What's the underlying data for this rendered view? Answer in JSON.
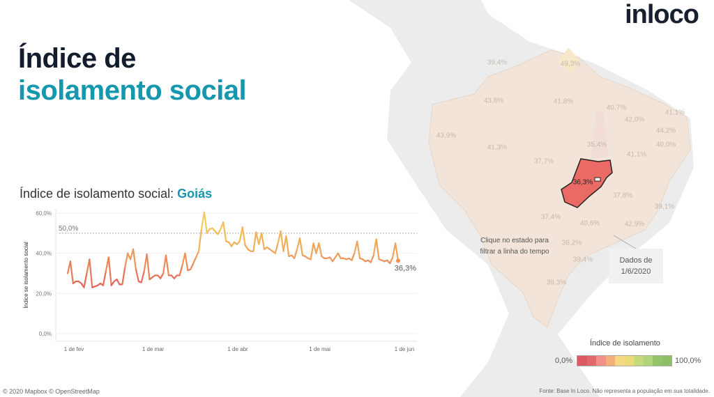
{
  "header": {
    "title_line1": "Índice de",
    "title_line2": "isolamento social",
    "logo": "inloco"
  },
  "chart_title": {
    "prefix": "Índice de isolamento social: ",
    "state": "Goiás"
  },
  "chart_data": {
    "type": "line",
    "ylabel": "Índice se isolamento social",
    "ylim": [
      0,
      60
    ],
    "yticks": [
      "0,0%",
      "20,0%",
      "40,0%",
      "60,0%"
    ],
    "ytick_values": [
      0,
      20,
      40,
      60
    ],
    "xticks": [
      "1 de fev",
      "1 de mar",
      "1 de abr",
      "1 de mai",
      "1 de jun"
    ],
    "x_start": "2020-02-01",
    "x_end": "2020-06-01",
    "reference_line": {
      "value": 50,
      "label": "50,0%"
    },
    "last_label": "36,3%",
    "grid": "horizontal",
    "values": [
      30,
      36,
      25,
      26,
      26,
      25,
      23,
      30,
      37,
      23,
      23.5,
      24,
      25,
      24,
      31,
      38,
      24,
      26,
      27,
      24.5,
      24.5,
      33,
      40,
      37,
      42,
      32,
      26,
      25.5,
      31,
      39.5,
      27,
      28,
      29,
      29,
      27.5,
      30,
      39,
      29,
      29,
      27.5,
      29,
      29,
      34,
      40,
      31.5,
      32,
      35,
      38,
      41,
      52,
      60.5,
      50,
      52,
      52.5,
      51,
      49.5,
      52,
      55.5,
      46,
      45.5,
      43.5,
      45.5,
      44.5,
      46,
      53,
      44,
      42,
      41,
      41,
      50.5,
      44.5,
      50,
      42,
      43,
      42,
      41,
      40,
      45,
      51,
      41,
      48.5,
      38.5,
      39,
      37.5,
      42,
      47.5,
      39,
      38.5,
      37.5,
      37,
      45,
      40,
      45,
      38.5,
      37.5,
      37.5,
      38,
      36,
      38,
      40,
      37.5,
      37.5,
      37,
      37.5,
      36.5,
      40,
      46,
      37.5,
      37,
      36,
      36.5,
      35.5,
      39,
      47,
      37,
      36.5,
      36,
      36.5,
      35,
      38,
      45,
      36.3
    ],
    "colors": {
      "low": "#e05858",
      "mid": "#f0a05a",
      "high": "#f2d25a"
    }
  },
  "map": {
    "state_labels": [
      "39,4%",
      "49,3%",
      "43,8%",
      "41,8%",
      "40,7%",
      "41,1%",
      "42,0%",
      "44,2%",
      "43,9%",
      "35,4%",
      "40,0%",
      "41,3%",
      "37,7%",
      "41,1%",
      "36,3%",
      "37,8%",
      "39,1%",
      "37,4%",
      "40,6%",
      "42,9%",
      "38,2%",
      "39,4%",
      "39,3%"
    ],
    "hint": "Clique no estado para filtrar a linha do tempo",
    "data_date_line1": "Dados de",
    "data_date_line2": "1/6/2020",
    "selected_state": "Goiás",
    "selected_color": "#ea6b66",
    "base_color": "#f2e4d8"
  },
  "legend": {
    "title": "Índice de isolamento",
    "min": "0,0%",
    "max": "100,0%",
    "colors": [
      "#dc5a61",
      "#e2696a",
      "#f0908a",
      "#f4b07a",
      "#f4d882",
      "#eada78",
      "#c4da7c",
      "#b0d47a",
      "#94c46a",
      "#8cc066"
    ]
  },
  "footer": {
    "source": "Fonte: Base In Loco. Não representa a população em sua totalidade.",
    "copyright": "© 2020 Mapbox © OpenStreetMap"
  }
}
